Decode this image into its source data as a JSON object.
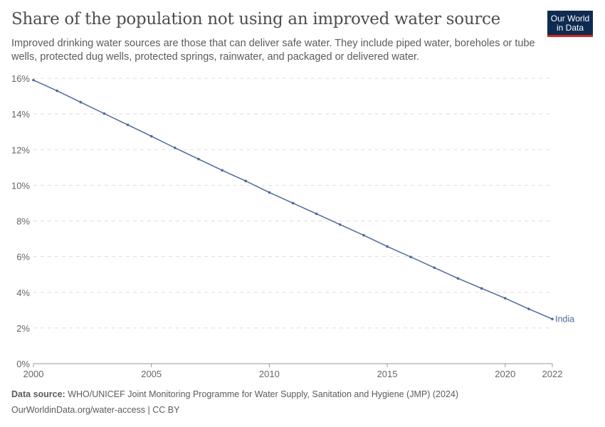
{
  "header": {
    "title": "Share of the population not using an improved water source",
    "subtitle": "Improved drinking water sources are those that can deliver safe water. They include piped water, boreholes or tube wells, protected dug wells, protected springs, rainwater, and packaged or delivered water.",
    "logo": "Our World in Data"
  },
  "footer": {
    "source_label": "Data source:",
    "source": "WHO/UNICEF Joint Monitoring Programme for Water Supply, Sanitation and Hygiene (JMP) (2024)",
    "link": "OurWorldinData.org/water-access | CC BY"
  },
  "chart_data": {
    "type": "line",
    "title": "Share of the population not using an improved water source",
    "xlim": [
      2000,
      2022
    ],
    "ylim": [
      0,
      16
    ],
    "x_ticks": [
      2000,
      2005,
      2010,
      2015,
      2020,
      2022
    ],
    "y_ticks": [
      0,
      2,
      4,
      6,
      8,
      10,
      12,
      14,
      16
    ],
    "y_unit": "%",
    "grid": "horizontal dashed",
    "series": [
      {
        "name": "India",
        "color": "#4c6a9c",
        "x": [
          2000,
          2001,
          2002,
          2003,
          2004,
          2005,
          2006,
          2007,
          2008,
          2009,
          2010,
          2011,
          2012,
          2013,
          2014,
          2015,
          2016,
          2017,
          2018,
          2019,
          2020,
          2021,
          2022
        ],
        "values": [
          15.9,
          15.3,
          14.66,
          14.02,
          13.39,
          12.75,
          12.1,
          11.47,
          10.84,
          10.24,
          9.6,
          9.0,
          8.4,
          7.8,
          7.2,
          6.57,
          5.98,
          5.38,
          4.78,
          4.22,
          3.67,
          3.07,
          2.5
        ]
      }
    ]
  }
}
